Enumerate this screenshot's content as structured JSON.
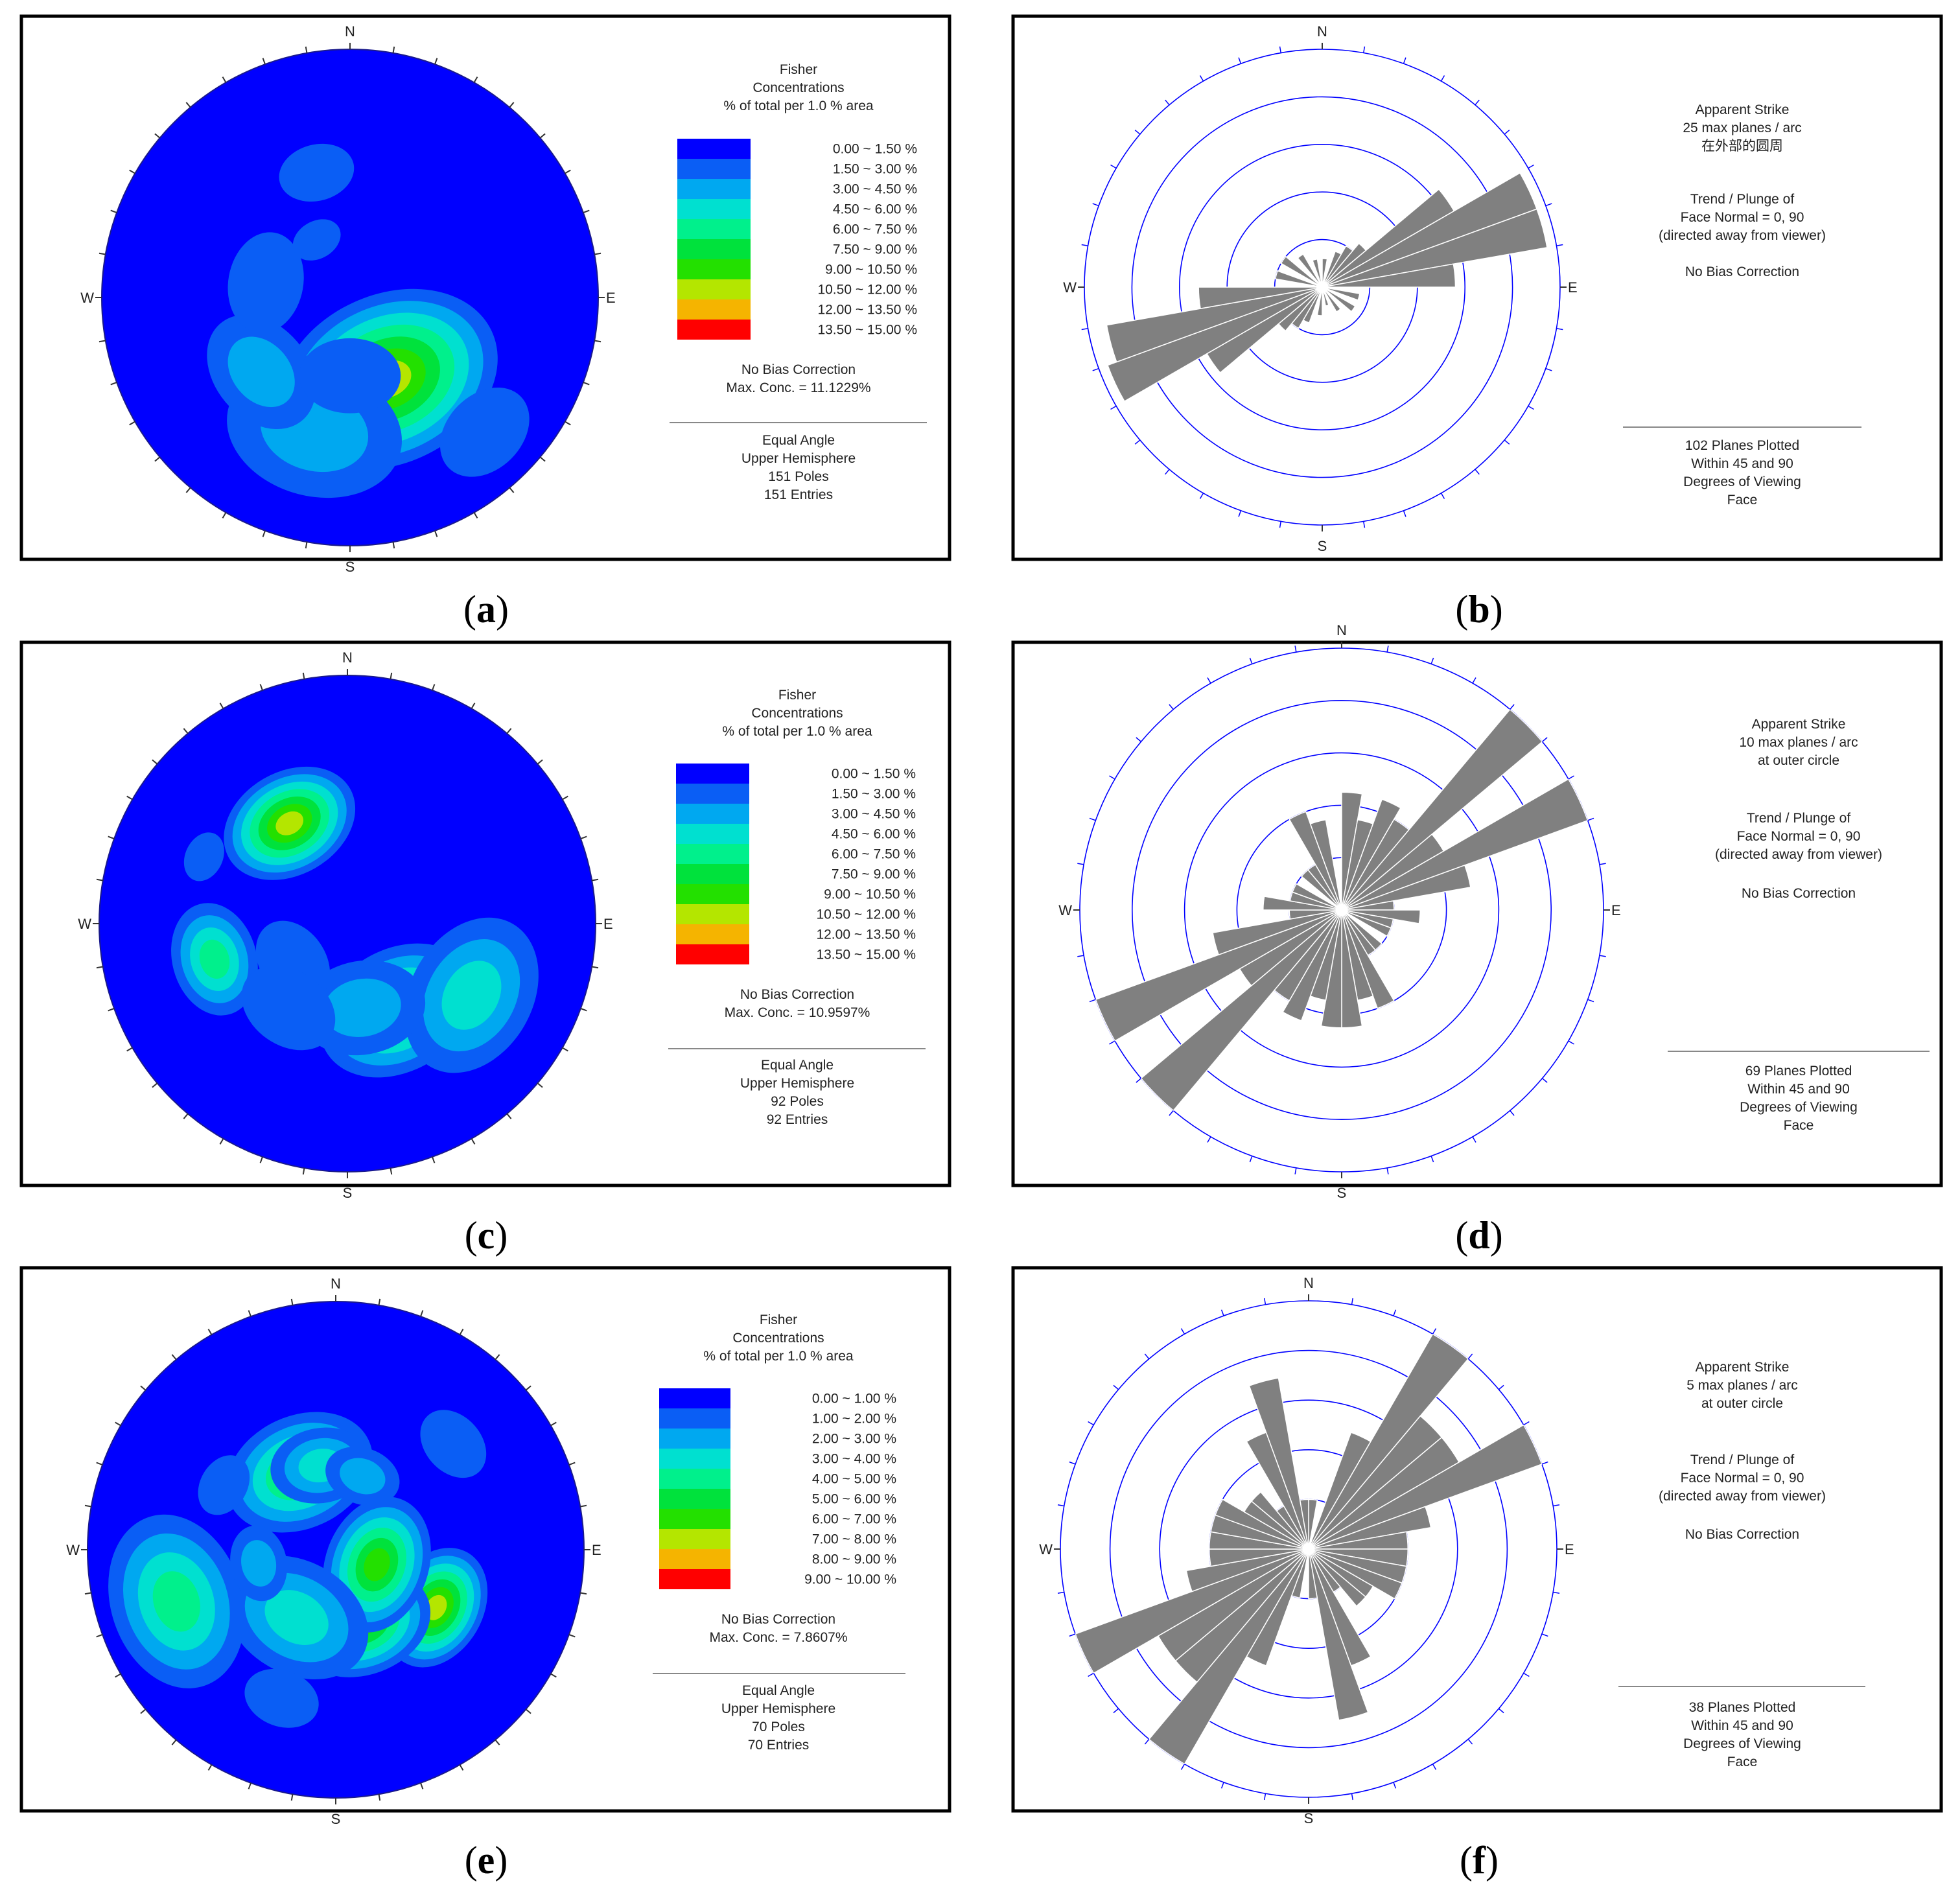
{
  "figure": {
    "panels": [
      {
        "id": "a",
        "caption": "(a)",
        "kind": "stereonet",
        "directions": {
          "N": "N",
          "S": "S",
          "E": "E",
          "W": "W"
        },
        "legend": {
          "title_lines": [
            "Fisher",
            "Concentrations",
            "% of total per 1.0 % area"
          ],
          "bins": [
            "0.00 ~  1.50 %",
            "1.50 ~  3.00 %",
            "3.00 ~  4.50 %",
            "4.50 ~  6.00 %",
            "6.00 ~  7.50 %",
            "7.50 ~  9.00 %",
            "9.00 ~ 10.50 %",
            "10.50 ~ 12.00 %",
            "12.00 ~ 13.50 %",
            "13.50 ~ 15.00 %"
          ],
          "note_lines": [
            "No Bias Correction",
            "Max. Conc. = 11.1229%"
          ],
          "footer_lines": [
            "Equal Angle",
            "Upper Hemisphere",
            "151 Poles",
            "151 Entries"
          ]
        }
      },
      {
        "id": "b",
        "caption": "(b)",
        "kind": "rose",
        "directions": {
          "N": "N",
          "S": "S",
          "E": "E",
          "W": "W"
        },
        "info": {
          "block1": [
            "Apparent Strike",
            "25 max planes / arc",
            "在外部的圆周"
          ],
          "block2": [
            "Trend / Plunge of",
            "Face Normal =   0, 90",
            "(directed away from viewer)"
          ],
          "block3": [
            "No Bias Correction"
          ],
          "footer_lines": [
            "102 Planes Plotted",
            "Within 45 and 90",
            "Degrees of Viewing",
            "Face"
          ]
        }
      },
      {
        "id": "c",
        "caption": "(c)",
        "kind": "stereonet",
        "directions": {
          "N": "N",
          "S": "S",
          "E": "E",
          "W": "W"
        },
        "legend": {
          "title_lines": [
            "Fisher",
            "Concentrations",
            "% of total per 1.0 % area"
          ],
          "bins": [
            "0.00 ~  1.50 %",
            "1.50 ~  3.00 %",
            "3.00 ~  4.50 %",
            "4.50 ~  6.00 %",
            "6.00 ~  7.50 %",
            "7.50 ~  9.00 %",
            "9.00 ~ 10.50 %",
            "10.50 ~ 12.00 %",
            "12.00 ~ 13.50 %",
            "13.50 ~ 15.00 %"
          ],
          "note_lines": [
            "No Bias Correction",
            "Max. Conc. = 10.9597%"
          ],
          "footer_lines": [
            "Equal Angle",
            "Upper Hemisphere",
            "92 Poles",
            "92 Entries"
          ]
        }
      },
      {
        "id": "d",
        "caption": "(d)",
        "kind": "rose",
        "directions": {
          "N": "N",
          "S": "S",
          "E": "E",
          "W": "W"
        },
        "info": {
          "block1": [
            "Apparent Strike",
            "10 max planes / arc",
            "at outer circle"
          ],
          "block2": [
            "Trend / Plunge of",
            "Face Normal =   0, 90",
            "(directed away from viewer)"
          ],
          "block3": [
            "No Bias Correction"
          ],
          "footer_lines": [
            "69 Planes Plotted",
            "Within 45 and 90",
            "Degrees of Viewing",
            "Face"
          ]
        }
      },
      {
        "id": "e",
        "caption": "(e)",
        "kind": "stereonet",
        "directions": {
          "N": "N",
          "S": "S",
          "E": "E",
          "W": "W"
        },
        "legend": {
          "title_lines": [
            "Fisher",
            "Concentrations",
            "% of total per 1.0 % area"
          ],
          "bins": [
            "0.00 ~  1.00 %",
            "1.00 ~  2.00 %",
            "2.00 ~  3.00 %",
            "3.00 ~  4.00 %",
            "4.00 ~  5.00 %",
            "5.00 ~  6.00 %",
            "6.00 ~  7.00 %",
            "7.00 ~  8.00 %",
            "8.00 ~  9.00 %",
            "9.00 ~ 10.00 %"
          ],
          "note_lines": [
            "No Bias Correction",
            "Max. Conc. = 7.8607%"
          ],
          "footer_lines": [
            "Equal Angle",
            "Upper Hemisphere",
            "70 Poles",
            "70 Entries"
          ]
        }
      },
      {
        "id": "f",
        "caption": "(f)",
        "kind": "rose",
        "directions": {
          "N": "N",
          "S": "S",
          "E": "E",
          "W": "W"
        },
        "info": {
          "block1": [
            "Apparent Strike",
            "5 max planes / arc",
            "at outer circle"
          ],
          "block2": [
            "Trend / Plunge of",
            "Face Normal =   0, 90",
            "(directed away from viewer)"
          ],
          "block3": [
            "No Bias Correction"
          ],
          "footer_lines": [
            "38 Planes Plotted",
            "Within 45 and 90",
            "Degrees of Viewing",
            "Face"
          ]
        }
      }
    ]
  },
  "colors": {
    "bins": [
      "#0000ff",
      "#0a5ef5",
      "#00a8f0",
      "#00e0d0",
      "#00f08c",
      "#00e23c",
      "#23e000",
      "#b4e600",
      "#f5b400",
      "#ff0000"
    ],
    "rose_petal": "#808080",
    "rose_ring": "#0000ff",
    "frame": "#000000"
  },
  "chart_data": [
    {
      "panel": "a",
      "type": "heatmap",
      "projection": "Equal Angle",
      "hemisphere": "Upper Hemisphere",
      "poles": 151,
      "entries": 151,
      "max_concentration_pct": 11.1229,
      "contour_bins_pct": [
        [
          0,
          1.5
        ],
        [
          1.5,
          3
        ],
        [
          3,
          4.5
        ],
        [
          4.5,
          6
        ],
        [
          6,
          7.5
        ],
        [
          7.5,
          9
        ],
        [
          9,
          10.5
        ],
        [
          10.5,
          12
        ],
        [
          12,
          13.5
        ],
        [
          13.5,
          15
        ]
      ],
      "clusters": [
        {
          "trend": 155,
          "plunge": 50,
          "peak_pct": 11.1,
          "spread_deg": 18
        },
        {
          "trend": 195,
          "plunge": 32,
          "peak_pct": 4.0,
          "spread_deg": 14
        },
        {
          "trend": 230,
          "plunge": 40,
          "peak_pct": 3.0,
          "spread_deg": 10
        },
        {
          "trend": 135,
          "plunge": 15,
          "peak_pct": 2.5,
          "spread_deg": 8
        },
        {
          "trend": 280,
          "plunge": 52,
          "peak_pct": 2.0,
          "spread_deg": 8
        },
        {
          "trend": 345,
          "plunge": 35,
          "peak_pct": 2.0,
          "spread_deg": 6
        },
        {
          "trend": 330,
          "plunge": 60,
          "peak_pct": 1.6,
          "spread_deg": 4
        },
        {
          "trend": 180,
          "plunge": 55,
          "peak_pct": 2.0,
          "spread_deg": 8
        }
      ]
    },
    {
      "panel": "b",
      "type": "rose",
      "bin_width_deg": 10,
      "max_value": 25,
      "ring_values": [
        5,
        10,
        15,
        20,
        25
      ],
      "strike_bins": [
        {
          "azimuth": 5,
          "count": 3
        },
        {
          "azimuth": 25,
          "count": 4
        },
        {
          "azimuth": 35,
          "count": 5
        },
        {
          "azimuth": 45,
          "count": 6
        },
        {
          "azimuth": 55,
          "count": 16
        },
        {
          "azimuth": 65,
          "count": 24
        },
        {
          "azimuth": 75,
          "count": 24
        },
        {
          "azimuth": 85,
          "count": 14
        },
        {
          "azimuth": 105,
          "count": 4
        },
        {
          "azimuth": 125,
          "count": 4
        },
        {
          "azimuth": 145,
          "count": 3
        },
        {
          "azimuth": 165,
          "count": 2
        },
        {
          "azimuth": 185,
          "count": 3
        },
        {
          "azimuth": 205,
          "count": 4
        },
        {
          "azimuth": 215,
          "count": 5
        },
        {
          "azimuth": 225,
          "count": 6
        },
        {
          "azimuth": 235,
          "count": 14
        },
        {
          "azimuth": 245,
          "count": 24
        },
        {
          "azimuth": 255,
          "count": 23
        },
        {
          "azimuth": 265,
          "count": 13
        },
        {
          "azimuth": 285,
          "count": 5
        },
        {
          "azimuth": 305,
          "count": 5
        },
        {
          "azimuth": 325,
          "count": 4
        },
        {
          "azimuth": 345,
          "count": 3
        }
      ],
      "planes_plotted": 102
    },
    {
      "panel": "c",
      "type": "heatmap",
      "projection": "Equal Angle",
      "hemisphere": "Upper Hemisphere",
      "poles": 92,
      "entries": 92,
      "max_concentration_pct": 10.9597,
      "contour_bins_pct": [
        [
          0,
          1.5
        ],
        [
          1.5,
          3
        ],
        [
          3,
          4.5
        ],
        [
          4.5,
          6
        ],
        [
          6,
          7.5
        ],
        [
          7.5,
          9
        ],
        [
          9,
          10.5
        ],
        [
          10.5,
          12
        ],
        [
          12,
          13.5
        ],
        [
          13.5,
          15
        ]
      ],
      "clusters": [
        {
          "trend": 330,
          "plunge": 40,
          "peak_pct": 10.5,
          "spread_deg": 11
        },
        {
          "trend": 150,
          "plunge": 46,
          "peak_pct": 8.0,
          "spread_deg": 13
        },
        {
          "trend": 120,
          "plunge": 30,
          "peak_pct": 5.0,
          "spread_deg": 13
        },
        {
          "trend": 170,
          "plunge": 52,
          "peak_pct": 3.0,
          "spread_deg": 10
        },
        {
          "trend": 255,
          "plunge": 32,
          "peak_pct": 6.5,
          "spread_deg": 9
        },
        {
          "trend": 235,
          "plunge": 60,
          "peak_pct": 2.0,
          "spread_deg": 7
        },
        {
          "trend": 215,
          "plunge": 45,
          "peak_pct": 2.0,
          "spread_deg": 8
        },
        {
          "trend": 295,
          "plunge": 25,
          "peak_pct": 1.6,
          "spread_deg": 4
        }
      ]
    },
    {
      "panel": "d",
      "type": "rose",
      "bin_width_deg": 10,
      "max_value": 10,
      "ring_values": [
        2,
        4,
        6,
        8,
        10
      ],
      "strike_bins": [
        {
          "azimuth": 5,
          "count": 4.5
        },
        {
          "azimuth": 15,
          "count": 3.5
        },
        {
          "azimuth": 25,
          "count": 4.5
        },
        {
          "azimuth": 35,
          "count": 4
        },
        {
          "azimuth": 45,
          "count": 10
        },
        {
          "azimuth": 55,
          "count": 4.5
        },
        {
          "azimuth": 65,
          "count": 10
        },
        {
          "azimuth": 75,
          "count": 5
        },
        {
          "azimuth": 85,
          "count": 2
        },
        {
          "azimuth": 95,
          "count": 3
        },
        {
          "azimuth": 105,
          "count": 2
        },
        {
          "azimuth": 115,
          "count": 2
        },
        {
          "azimuth": 135,
          "count": 2
        },
        {
          "azimuth": 145,
          "count": 2
        },
        {
          "azimuth": 155,
          "count": 4
        },
        {
          "azimuth": 165,
          "count": 3.5
        },
        {
          "azimuth": 175,
          "count": 4.5
        },
        {
          "azimuth": 185,
          "count": 4.5
        },
        {
          "azimuth": 195,
          "count": 3.5
        },
        {
          "azimuth": 205,
          "count": 4.5
        },
        {
          "azimuth": 215,
          "count": 4
        },
        {
          "azimuth": 225,
          "count": 10
        },
        {
          "azimuth": 235,
          "count": 4.5
        },
        {
          "azimuth": 245,
          "count": 10
        },
        {
          "azimuth": 255,
          "count": 5
        },
        {
          "azimuth": 265,
          "count": 2
        },
        {
          "azimuth": 275,
          "count": 3
        },
        {
          "azimuth": 285,
          "count": 2
        },
        {
          "azimuth": 295,
          "count": 2
        },
        {
          "azimuth": 315,
          "count": 2
        },
        {
          "azimuth": 325,
          "count": 2
        },
        {
          "azimuth": 335,
          "count": 4
        },
        {
          "azimuth": 345,
          "count": 3.5
        }
      ],
      "planes_plotted": 69
    },
    {
      "panel": "e",
      "type": "heatmap",
      "projection": "Equal Angle",
      "hemisphere": "Upper Hemisphere",
      "poles": 70,
      "entries": 70,
      "max_concentration_pct": 7.8607,
      "contour_bins_pct": [
        [
          0,
          1
        ],
        [
          1,
          2
        ],
        [
          2,
          3
        ],
        [
          3,
          4
        ],
        [
          4,
          5
        ],
        [
          5,
          6
        ],
        [
          6,
          7
        ],
        [
          7,
          8
        ],
        [
          8,
          9
        ],
        [
          9,
          10
        ]
      ],
      "clusters": [
        {
          "trend": 120,
          "plunge": 40,
          "peak_pct": 7.8,
          "spread_deg": 10
        },
        {
          "trend": 160,
          "plunge": 55,
          "peak_pct": 6.5,
          "spread_deg": 11
        },
        {
          "trend": 110,
          "plunge": 70,
          "peak_pct": 6.0,
          "spread_deg": 11
        },
        {
          "trend": 210,
          "plunge": 55,
          "peak_pct": 3.5,
          "spread_deg": 12
        },
        {
          "trend": 252,
          "plunge": 22,
          "peak_pct": 4.5,
          "spread_deg": 14
        },
        {
          "trend": 335,
          "plunge": 52,
          "peak_pct": 5.5,
          "spread_deg": 12
        },
        {
          "trend": 350,
          "plunge": 52,
          "peak_pct": 3.0,
          "spread_deg": 8
        },
        {
          "trend": 20,
          "plunge": 55,
          "peak_pct": 2.5,
          "spread_deg": 6
        },
        {
          "trend": 48,
          "plunge": 25,
          "peak_pct": 1.6,
          "spread_deg": 6
        },
        {
          "trend": 300,
          "plunge": 35,
          "peak_pct": 1.6,
          "spread_deg": 5
        },
        {
          "trend": 200,
          "plunge": 25,
          "peak_pct": 1.6,
          "spread_deg": 6
        },
        {
          "trend": 260,
          "plunge": 55,
          "peak_pct": 2.0,
          "spread_deg": 6
        }
      ]
    },
    {
      "panel": "f",
      "type": "rose",
      "bin_width_deg": 10,
      "max_value": 5,
      "ring_values": [
        1,
        2,
        3,
        4,
        5
      ],
      "strike_bins": [
        {
          "azimuth": 5,
          "count": 1
        },
        {
          "azimuth": 25,
          "count": 2.5
        },
        {
          "azimuth": 35,
          "count": 5
        },
        {
          "azimuth": 45,
          "count": 3.5
        },
        {
          "azimuth": 55,
          "count": 3.5
        },
        {
          "azimuth": 65,
          "count": 5
        },
        {
          "azimuth": 75,
          "count": 2.5
        },
        {
          "azimuth": 85,
          "count": 2
        },
        {
          "azimuth": 95,
          "count": 2
        },
        {
          "azimuth": 105,
          "count": 2
        },
        {
          "azimuth": 115,
          "count": 2
        },
        {
          "azimuth": 125,
          "count": 1.5
        },
        {
          "azimuth": 135,
          "count": 1.5
        },
        {
          "azimuth": 145,
          "count": 1
        },
        {
          "azimuth": 155,
          "count": 2.5
        },
        {
          "azimuth": 165,
          "count": 3.5
        },
        {
          "azimuth": 175,
          "count": 1
        },
        {
          "azimuth": 195,
          "count": 1
        },
        {
          "azimuth": 205,
          "count": 2.5
        },
        {
          "azimuth": 215,
          "count": 5
        },
        {
          "azimuth": 225,
          "count": 3.5
        },
        {
          "azimuth": 235,
          "count": 3.5
        },
        {
          "azimuth": 245,
          "count": 5
        },
        {
          "azimuth": 255,
          "count": 2.5
        },
        {
          "azimuth": 265,
          "count": 2
        },
        {
          "azimuth": 275,
          "count": 2
        },
        {
          "azimuth": 285,
          "count": 2
        },
        {
          "azimuth": 295,
          "count": 2
        },
        {
          "azimuth": 305,
          "count": 1.5
        },
        {
          "azimuth": 315,
          "count": 1.5
        },
        {
          "azimuth": 325,
          "count": 1
        },
        {
          "azimuth": 335,
          "count": 2.5
        },
        {
          "azimuth": 345,
          "count": 3.5
        },
        {
          "azimuth": 355,
          "count": 1
        }
      ],
      "planes_plotted": 38
    }
  ]
}
